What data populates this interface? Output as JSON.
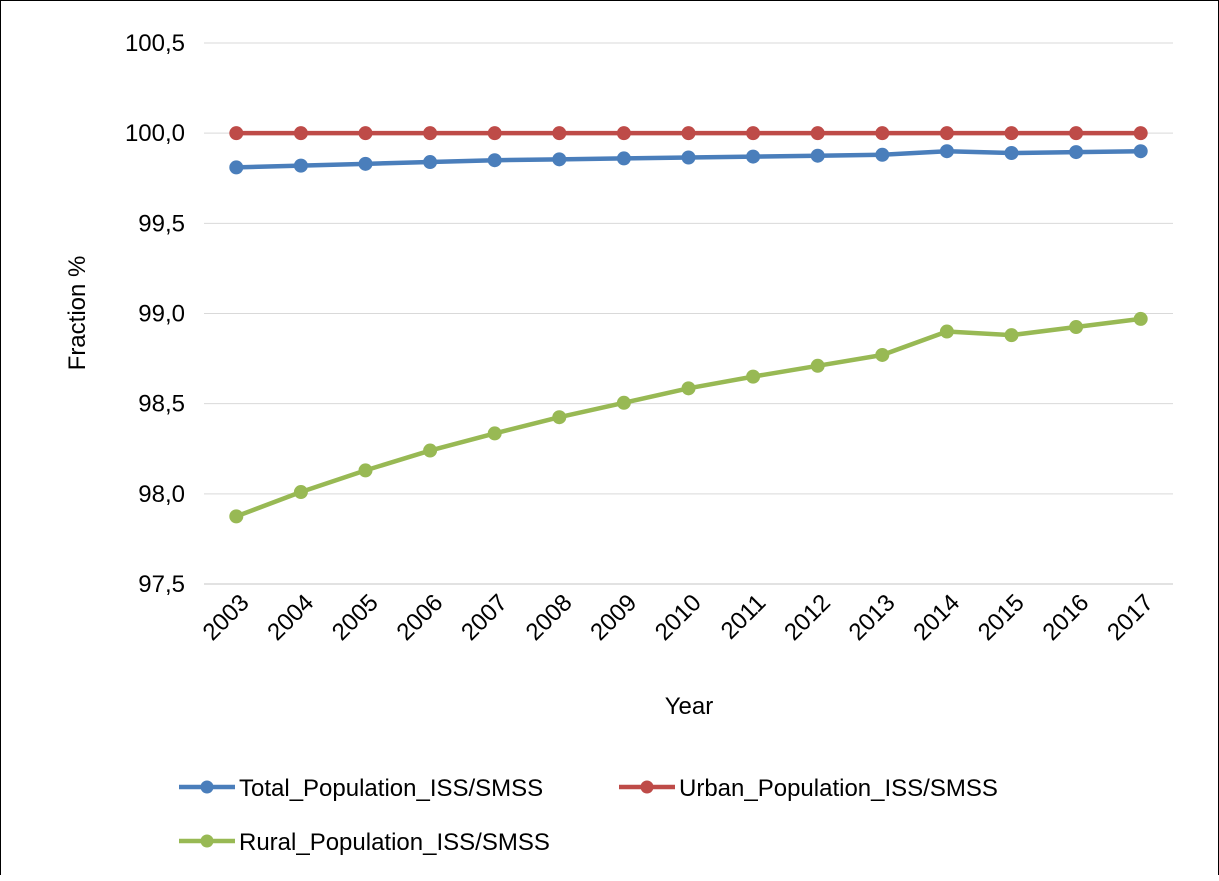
{
  "chart_data": {
    "type": "line",
    "title": "",
    "xlabel": "Year",
    "ylabel": "Fraction %",
    "ylim": [
      97.5,
      100.5
    ],
    "yticks": [
      97.5,
      98.0,
      98.5,
      99.0,
      99.5,
      100.0,
      100.5
    ],
    "ytick_labels": [
      "97,5",
      "98,0",
      "98,5",
      "99,0",
      "99,5",
      "100,0",
      "100,5"
    ],
    "categories": [
      "2003",
      "2004",
      "2005",
      "2006",
      "2007",
      "2008",
      "2009",
      "2010",
      "2011",
      "2012",
      "2013",
      "2014",
      "2015",
      "2016",
      "2017"
    ],
    "grid": "horizontal",
    "legend_position": "bottom",
    "series": [
      {
        "name": "Total_Population_ISS/SMSS",
        "color": "#4a7ebb",
        "values": [
          99.81,
          99.82,
          99.83,
          99.84,
          99.85,
          99.855,
          99.86,
          99.865,
          99.87,
          99.875,
          99.88,
          99.9,
          99.89,
          99.895,
          99.9
        ]
      },
      {
        "name": "Urban_Population_ISS/SMSS",
        "color": "#be4b48",
        "values": [
          100.0,
          100.0,
          100.0,
          100.0,
          100.0,
          100.0,
          100.0,
          100.0,
          100.0,
          100.0,
          100.0,
          100.0,
          100.0,
          100.0,
          100.0
        ]
      },
      {
        "name": "Rural_Population_ISS/SMSS",
        "color": "#98b954",
        "values": [
          97.875,
          98.01,
          98.13,
          98.24,
          98.335,
          98.425,
          98.505,
          98.585,
          98.65,
          98.71,
          98.77,
          98.9,
          98.88,
          98.925,
          98.97
        ]
      }
    ]
  }
}
